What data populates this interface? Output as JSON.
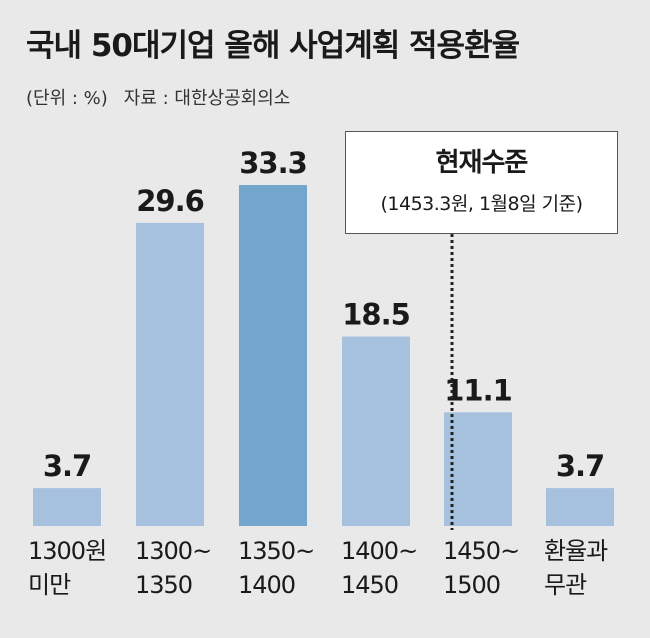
{
  "header": {
    "title": "국내 50대기업 올해 사업계획 적용환율",
    "unit": "(단위 : %)",
    "source": "자료 : 대한상공회의소"
  },
  "callout": {
    "title": "현재수준",
    "subtitle": "(1453.3원, 1월8일 기준)"
  },
  "colors": {
    "bar": "#a6c1de",
    "bar_highlight": "#72a6cd",
    "background": "#e9e9ea",
    "marker": "#222222"
  },
  "chart_data": {
    "type": "bar",
    "title": "국내 50대기업 올해 사업계획 적용환율",
    "ylabel": "(단위 : %)",
    "categories": [
      "1300원 미만",
      "1300~1350",
      "1350~1400",
      "1400~1450",
      "1450~1500",
      "환율과 무관"
    ],
    "category_lines": [
      [
        "1300원",
        "미만"
      ],
      [
        "1300~",
        "1350"
      ],
      [
        "1350~",
        "1400"
      ],
      [
        "1400~",
        "1450"
      ],
      [
        "1450~",
        "1500"
      ],
      [
        "환율과",
        "무관"
      ]
    ],
    "values": [
      3.7,
      29.6,
      33.3,
      18.5,
      11.1,
      3.7
    ],
    "value_labels": [
      "3.7",
      "29.6",
      "33.3",
      "18.5",
      "11.1",
      "3.7"
    ],
    "highlight_index": 2,
    "reference_line": {
      "label": "현재수준",
      "value": 1453.3,
      "position": "within 1450~1500"
    },
    "ylim": [
      0,
      33.3
    ],
    "grid": false,
    "legend": "none"
  }
}
